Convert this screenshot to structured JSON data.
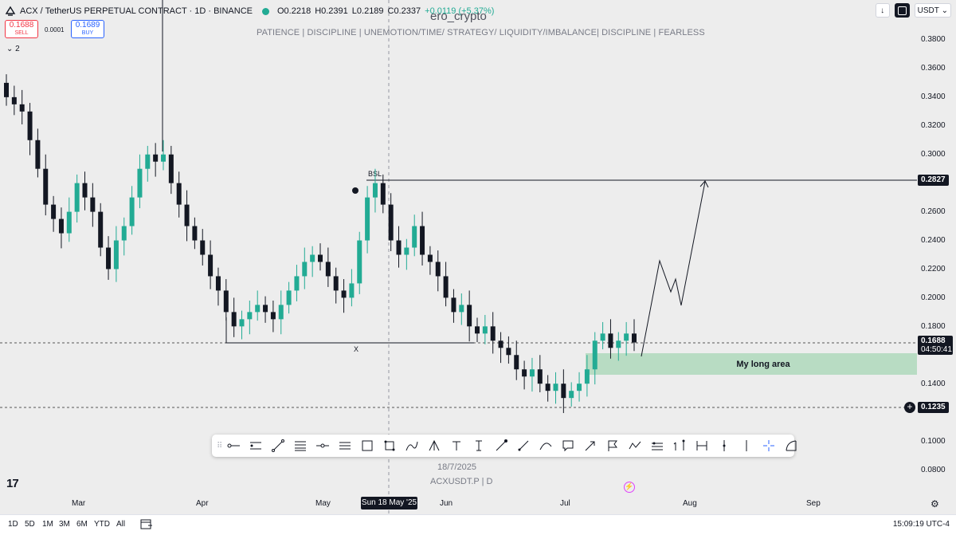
{
  "header": {
    "symbol_title": "ACX / TetherUS PERPETUAL CONTRACT · 1D · BINANCE",
    "open": "O0.2218",
    "high": "H0.2391",
    "low": "L0.2189",
    "close": "C0.2337",
    "change": "+0.0119 (+5.37%)"
  },
  "trade": {
    "sell_price": "0.1688",
    "sell_label": "SELL",
    "spread": "0.0001",
    "buy_price": "0.1689",
    "buy_label": "BUY"
  },
  "indicators_toggle": "2",
  "watermark": "ero_crypto",
  "motto": "PATIENCE  |  DISCIPLINE  |  UNEMOTION/TIME/ STRATEGY/ LIQUIDITY/IMBALANCE|  DISCIPLINE  |  FEARLESS",
  "top_right": {
    "currency": "USDT"
  },
  "price_axis": {
    "labels": [
      "0.3800",
      "0.3600",
      "0.3400",
      "0.3200",
      "0.3000",
      "0.2600",
      "0.2400",
      "0.2200",
      "0.2000",
      "0.1800",
      "0.1400",
      "0.1000",
      "0.0800"
    ],
    "bsl_price": "0.2827",
    "last_price": "0.1688",
    "countdown": "04:50:41",
    "low_price": "0.1235"
  },
  "chart_annotations": {
    "bsl": "BSL",
    "x_mark": "X",
    "long_area": "My long area"
  },
  "chart_data": {
    "type": "candlestick",
    "symbol": "ACXUSDT.P",
    "interval": "D",
    "ylim": [
      0.07,
      0.39
    ],
    "series_close": [
      0.34,
      0.335,
      0.33,
      0.31,
      0.29,
      0.265,
      0.255,
      0.245,
      0.26,
      0.28,
      0.27,
      0.26,
      0.235,
      0.22,
      0.24,
      0.25,
      0.27,
      0.29,
      0.3,
      0.295,
      0.3,
      0.28,
      0.265,
      0.25,
      0.24,
      0.23,
      0.215,
      0.205,
      0.19,
      0.18,
      0.185,
      0.19,
      0.195,
      0.19,
      0.185,
      0.195,
      0.205,
      0.215,
      0.225,
      0.23,
      0.225,
      0.215,
      0.205,
      0.2,
      0.21,
      0.24,
      0.27,
      0.28,
      0.265,
      0.24,
      0.23,
      0.235,
      0.25,
      0.23,
      0.225,
      0.215,
      0.2,
      0.19,
      0.195,
      0.18,
      0.175,
      0.18,
      0.17,
      0.165,
      0.16,
      0.15,
      0.145,
      0.15,
      0.14,
      0.135,
      0.14,
      0.13,
      0.135,
      0.14,
      0.15,
      0.17,
      0.175,
      0.165,
      0.17,
      0.175,
      0.1688
    ],
    "levels": {
      "bsl": 0.2827,
      "x_low": 0.167,
      "current": 0.1688,
      "recent_low": 0.1235
    },
    "long_area": [
      0.146,
      0.16
    ],
    "projection": "zigzag up from long area toward BSL 0.2827",
    "x_axis": {
      "months": [
        "Mar",
        "Apr",
        "May",
        "Jun",
        "Jul",
        "Aug",
        "Sep"
      ],
      "crosshair_time": "Sun 18 May '25"
    }
  },
  "footer": {
    "date_label": "18/7/2025",
    "symbol_label": "ACXUSDT.P  |  D",
    "timeframes": [
      "1D",
      "5D",
      "1M",
      "3M",
      "6M",
      "YTD",
      "All"
    ],
    "clock": "15:09:19 UTC-4"
  },
  "toolbar_tools": [
    "horizontal-ray",
    "parallel-channel",
    "trend-line",
    "fib-retracement",
    "horizontal-line",
    "long-position",
    "rectangle",
    "rotated-rectangle",
    "path",
    "pitchfork",
    "text",
    "anchored-text",
    "arrow-marker",
    "brush",
    "curve",
    "callout",
    "arrow",
    "flag",
    "xabcd-pattern",
    "date-price-range",
    "long-short",
    "price-range",
    "date-range",
    "vertical-line",
    "crosshair",
    "bezier-curve"
  ]
}
